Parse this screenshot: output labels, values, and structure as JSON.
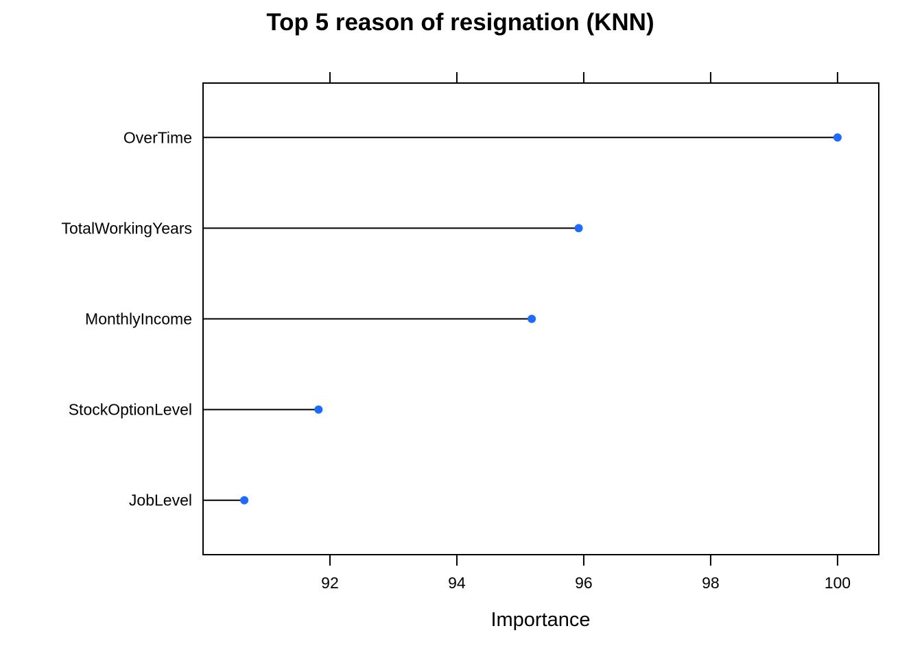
{
  "chart_data": {
    "type": "dotplot",
    "title": "Top 5 reason of resignation (KNN)",
    "xlabel": "Importance",
    "ylabel": "",
    "categories": [
      "OverTime",
      "TotalWorkingYears",
      "MonthlyIncome",
      "StockOptionLevel",
      "JobLevel"
    ],
    "values": [
      100.0,
      95.92,
      95.18,
      91.82,
      90.65
    ],
    "xlim": [
      90.0,
      100.65
    ],
    "xticks": [
      92,
      94,
      96,
      98,
      100
    ],
    "xtick_labels": [
      "92",
      "94",
      "96",
      "98",
      "100"
    ],
    "grid": false,
    "legend": "none",
    "point_color": "#1F6BFF",
    "line_color": "#000000"
  }
}
